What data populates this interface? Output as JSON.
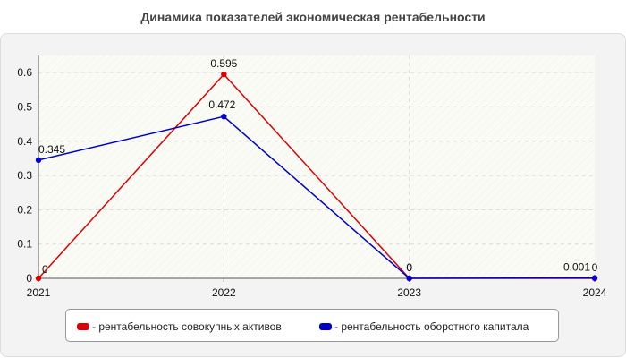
{
  "chart_data": {
    "type": "line",
    "title": "Динамика показателей экономическая рентабельности",
    "x": [
      "2021",
      "2022",
      "2023",
      "2024"
    ],
    "ylim": [
      0,
      0.65
    ],
    "yticks": [
      "0",
      "0.1",
      "0.2",
      "0.3",
      "0.4",
      "0.5",
      "0.6"
    ],
    "grid": true,
    "legend_position": "bottom",
    "series": [
      {
        "name": "- рентабельность совокупных активов",
        "color": "#dd0000",
        "values": [
          0,
          0.595,
          0,
          0
        ],
        "labels": [
          "0",
          "0.595",
          "0",
          "0"
        ]
      },
      {
        "name": "- рентабельность оборотного капитала",
        "color": "#0000cc",
        "values": [
          0.345,
          0.472,
          0,
          0.001
        ],
        "labels": [
          "0.345",
          "0.472",
          "0",
          "0.001"
        ]
      }
    ]
  }
}
